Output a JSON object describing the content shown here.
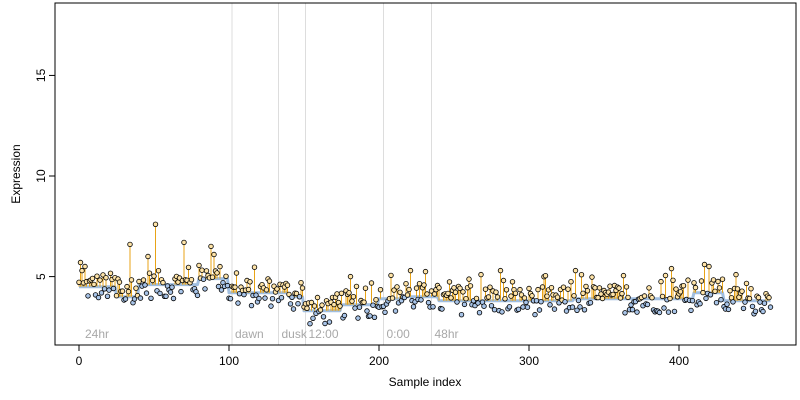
{
  "chart_data": {
    "type": "scatter",
    "xlabel": "Sample index",
    "ylabel": "Expression",
    "xlim": [
      -16,
      478
    ],
    "ylim": [
      1.6,
      18.6
    ],
    "x_ticks": [
      0,
      100,
      200,
      300,
      400
    ],
    "y_ticks": [
      5,
      10,
      15
    ],
    "annotations": [
      {
        "x": 102,
        "label": "dawn"
      },
      {
        "x": 133,
        "label": "dusk"
      },
      {
        "x": 151,
        "label": "12:00"
      },
      {
        "x": 203,
        "label": "0:00"
      },
      {
        "x": 235,
        "label": "48hr"
      }
    ],
    "start_label": {
      "x": 2,
      "text": "24hr"
    },
    "colors": {
      "fill_high": "#FFE4A8",
      "fill_low": "#A8C4E8",
      "stem": "#E8A317",
      "baseline": "#A0BEE0",
      "vline": "#DDDDDD",
      "point_stroke": "#000000"
    },
    "baseline_ranges": [
      {
        "from": 0,
        "to": 25,
        "y": 4.5
      },
      {
        "from": 25,
        "to": 40,
        "y": 4.0
      },
      {
        "from": 40,
        "to": 80,
        "y": 4.6
      },
      {
        "from": 80,
        "to": 100,
        "y": 4.9
      },
      {
        "from": 100,
        "to": 140,
        "y": 4.2
      },
      {
        "from": 140,
        "to": 150,
        "y": 4.0
      },
      {
        "from": 150,
        "to": 175,
        "y": 3.3
      },
      {
        "from": 175,
        "to": 200,
        "y": 3.6
      },
      {
        "from": 200,
        "to": 215,
        "y": 3.9
      },
      {
        "from": 215,
        "to": 240,
        "y": 4.0
      },
      {
        "from": 240,
        "to": 330,
        "y": 3.8
      },
      {
        "from": 330,
        "to": 410,
        "y": 3.9
      },
      {
        "from": 410,
        "to": 430,
        "y": 4.2
      },
      {
        "from": 430,
        "to": 462,
        "y": 3.8
      }
    ],
    "spikes": [
      {
        "x": 1,
        "y": 5.7
      },
      {
        "x": 2,
        "y": 5.3
      },
      {
        "x": 4,
        "y": 5.5
      },
      {
        "x": 34,
        "y": 6.6
      },
      {
        "x": 46,
        "y": 6.0
      },
      {
        "x": 51,
        "y": 7.6
      },
      {
        "x": 70,
        "y": 6.7
      },
      {
        "x": 88,
        "y": 6.5
      },
      {
        "x": 90,
        "y": 6.1
      },
      {
        "x": 181,
        "y": 5.0
      },
      {
        "x": 221,
        "y": 5.3
      },
      {
        "x": 268,
        "y": 5.1
      },
      {
        "x": 281,
        "y": 5.3
      },
      {
        "x": 331,
        "y": 5.3
      },
      {
        "x": 395,
        "y": 5.4
      },
      {
        "x": 417,
        "y": 5.6
      },
      {
        "x": 420,
        "y": 5.5
      },
      {
        "x": 438,
        "y": 5.1
      }
    ],
    "n_points": 462
  }
}
